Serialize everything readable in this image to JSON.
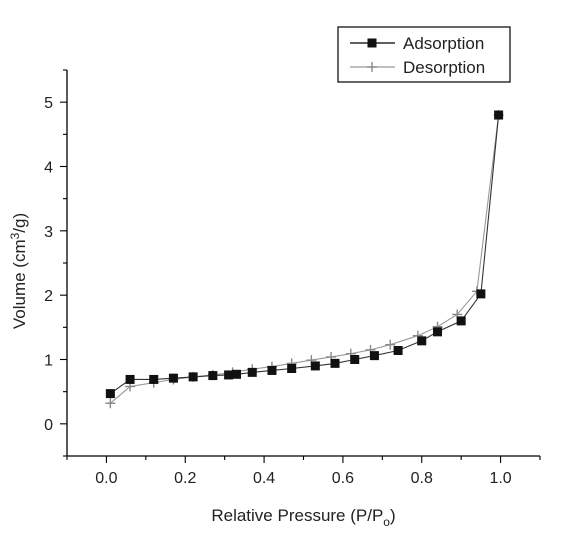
{
  "chart_data": {
    "type": "line",
    "xlabel": "Relative Pressure (P/P",
    "xlabel_sub": "o",
    "xlabel_close": ")",
    "ylabel": "Volume (cm",
    "ylabel_sup": "3",
    "ylabel_tail": "/g)",
    "xlim": [
      -0.1,
      1.1
    ],
    "ylim": [
      -0.5,
      5.5
    ],
    "xticks": [
      0.0,
      0.2,
      0.4,
      0.6,
      0.8,
      1.0
    ],
    "xtick_labels": [
      "0.0",
      "0.2",
      "0.4",
      "0.6",
      "0.8",
      "1.0"
    ],
    "yticks": [
      0,
      1,
      2,
      3,
      4,
      5
    ],
    "ytick_labels": [
      "0",
      "1",
      "2",
      "3",
      "4",
      "5"
    ],
    "grid": false,
    "legend_position": "top-right",
    "series": [
      {
        "name": "Adsorption",
        "marker": "square",
        "color": "#111111",
        "x": [
          0.01,
          0.06,
          0.12,
          0.17,
          0.22,
          0.27,
          0.31,
          0.33,
          0.37,
          0.42,
          0.47,
          0.53,
          0.58,
          0.63,
          0.68,
          0.74,
          0.8,
          0.84,
          0.9,
          0.95,
          0.995
        ],
        "y": [
          0.47,
          0.69,
          0.69,
          0.71,
          0.73,
          0.75,
          0.76,
          0.77,
          0.8,
          0.83,
          0.86,
          0.9,
          0.94,
          1.0,
          1.06,
          1.14,
          1.29,
          1.43,
          1.6,
          2.02,
          4.8
        ]
      },
      {
        "name": "Desorption",
        "marker": "plus",
        "color": "#888888",
        "x": [
          0.01,
          0.06,
          0.12,
          0.17,
          0.22,
          0.27,
          0.32,
          0.37,
          0.42,
          0.47,
          0.52,
          0.57,
          0.62,
          0.67,
          0.72,
          0.79,
          0.84,
          0.89,
          0.94,
          0.995
        ],
        "y": [
          0.32,
          0.58,
          0.64,
          0.69,
          0.73,
          0.76,
          0.8,
          0.85,
          0.89,
          0.94,
          0.99,
          1.04,
          1.09,
          1.15,
          1.23,
          1.37,
          1.51,
          1.7,
          2.06,
          4.8
        ]
      }
    ]
  }
}
